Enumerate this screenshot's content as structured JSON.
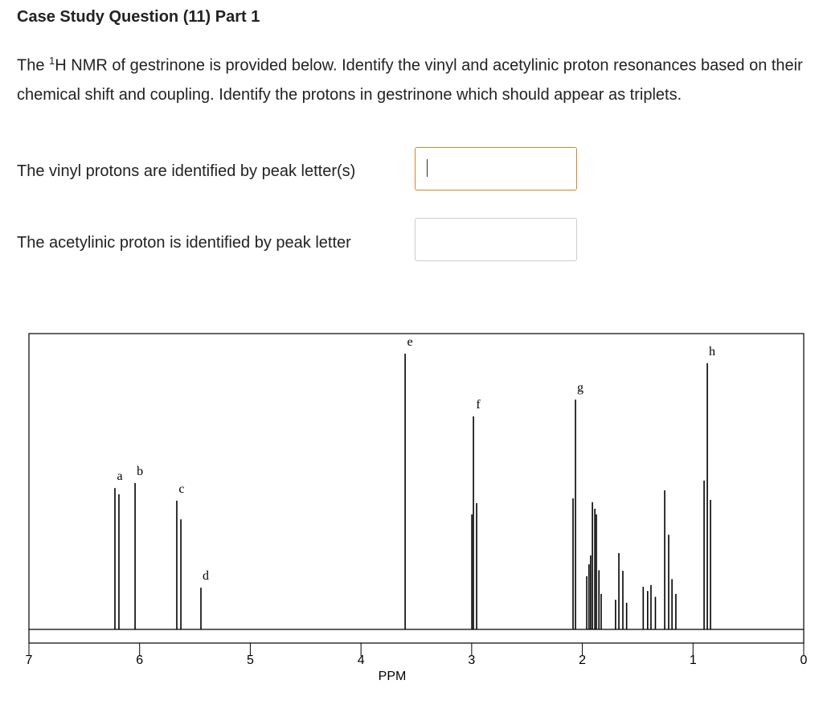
{
  "title": "Case Study Question (11) Part 1",
  "prompt": {
    "before": "The ",
    "sup": "1",
    "after": "H NMR of gestrinone is provided below.  Identify the vinyl and acetylinic proton resonances based on their chemical shift and coupling.  Identify the protons in gestrinone which should appear as triplets."
  },
  "questions": [
    {
      "label": "The vinyl protons are identified by peak letter(s)"
    },
    {
      "label": "The acetylinic proton is identified by peak letter"
    }
  ],
  "spectrum": {
    "xlabel": "PPM",
    "xlim": [
      7,
      0
    ],
    "xticks": [
      7,
      6,
      5,
      4,
      3,
      2,
      1,
      0
    ],
    "ylim": [
      0,
      100
    ],
    "peaks": [
      {
        "label": "a",
        "lines": [
          [
            6.223,
            47.8
          ],
          [
            6.187,
            45.7
          ]
        ]
      },
      {
        "label": "b",
        "lines": [
          [
            6.041,
            49.5
          ]
        ]
      },
      {
        "label": "c",
        "lines": [
          [
            5.664,
            43.5
          ],
          [
            5.627,
            37.2
          ]
        ]
      },
      {
        "label": "d",
        "lines": [
          [
            5.446,
            14.1
          ]
        ]
      },
      {
        "label": "e",
        "lines": [
          [
            3.601,
            93.2
          ]
        ]
      },
      {
        "label": "f",
        "lines": [
          [
            2.998,
            38.9
          ],
          [
            2.984,
            72
          ],
          [
            2.955,
            42.7
          ]
        ]
      },
      {
        "label": "g",
        "lines": [
          [
            2.084,
            44.3
          ],
          [
            2.062,
            77.7
          ]
        ]
      },
      {
        "label": "h",
        "lines": [
          [
            0.9,
            50.3
          ],
          [
            0.871,
            90
          ],
          [
            0.842,
            43.8
          ]
        ]
      }
    ],
    "other_lines": [
      [
        1.96,
        18
      ],
      [
        1.94,
        22
      ],
      [
        1.925,
        25
      ],
      [
        1.909,
        43
      ],
      [
        1.887,
        40.8
      ],
      [
        1.873,
        38.9
      ],
      [
        1.85,
        20
      ],
      [
        1.83,
        12
      ],
      [
        1.7,
        10
      ],
      [
        1.67,
        25.8
      ],
      [
        1.634,
        19.8
      ],
      [
        1.6,
        9
      ],
      [
        1.45,
        14.4
      ],
      [
        1.41,
        13
      ],
      [
        1.38,
        15
      ],
      [
        1.34,
        11
      ],
      [
        1.256,
        47
      ],
      [
        1.22,
        32
      ],
      [
        1.19,
        17
      ],
      [
        1.155,
        12
      ]
    ]
  }
}
